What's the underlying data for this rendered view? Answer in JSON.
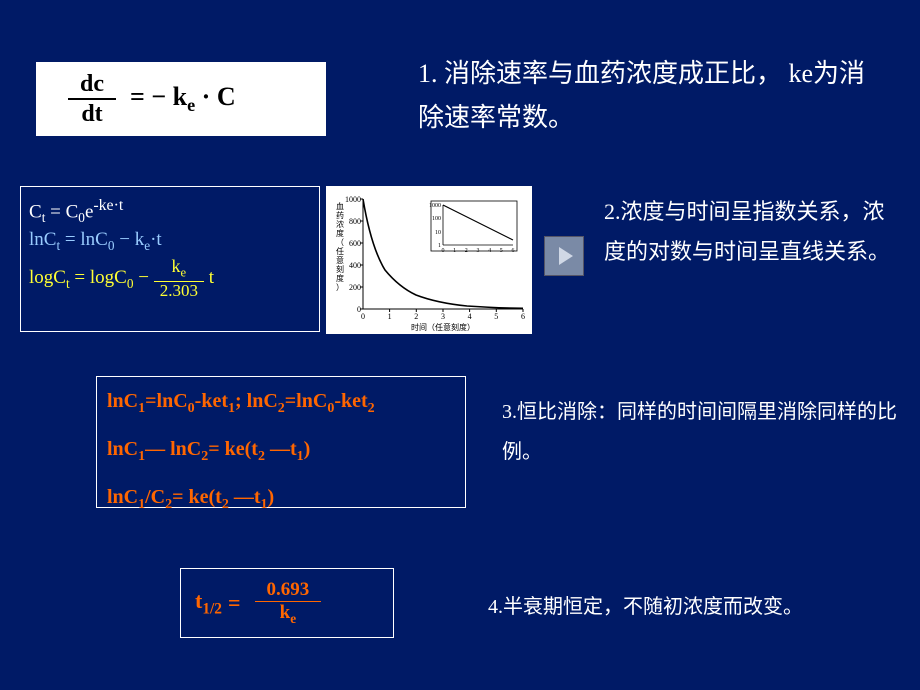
{
  "formula1": {
    "frac_num": "dc",
    "frac_den": "dt",
    "rhs": "= − k<sub>e</sub> · C"
  },
  "text1": "1. 消除速率与血药浓度成正比，  ke为消除速率常数。",
  "formula2": {
    "line1": "C<sub>t</sub>  =  C<sub>0</sub>e<sup>-ke·t</sup>",
    "line2": "lnC<sub>t</sub>  =  lnC<sub>0</sub> − k<sub>e</sub>·t",
    "line3_lhs": "logC<sub>t</sub> = logC<sub>0</sub> − ",
    "line3_frac_num": "k<sub>e</sub>",
    "line3_frac_den": "2.303",
    "line3_rhs": "  t"
  },
  "chart": {
    "type": "line",
    "y_label": "血药浓度（任意刻度）",
    "x_label": "时间（任意刻度）",
    "x_ticks": [
      0,
      1,
      2,
      3,
      4,
      5,
      6
    ],
    "y_ticks": [
      0,
      200,
      400,
      600,
      800,
      1000
    ],
    "series_main": [
      [
        0,
        1000
      ],
      [
        0.5,
        560
      ],
      [
        1,
        350
      ],
      [
        1.5,
        220
      ],
      [
        2,
        140
      ],
      [
        2.5,
        90
      ],
      [
        3,
        60
      ],
      [
        3.5,
        40
      ],
      [
        4,
        28
      ],
      [
        4.5,
        20
      ],
      [
        5,
        15
      ],
      [
        5.5,
        11
      ],
      [
        6,
        8
      ]
    ],
    "inset": {
      "x_ticks": [
        0,
        1,
        2,
        3,
        4,
        5,
        6
      ],
      "y_ticks_log": [
        1,
        10,
        100,
        1000
      ],
      "series": [
        [
          0,
          1000
        ],
        [
          6,
          8
        ]
      ]
    },
    "background_color": "#ffffff",
    "line_color": "#000000",
    "axis_color": "#000000",
    "font_size": 8
  },
  "text2": "2.浓度与时间呈指数关系，浓度的对数与时间呈直线关系。",
  "formula3": {
    "line1": "lnC<sub>1</sub>=lnC<sub>0</sub>-ket<sub>1</sub>; lnC<sub>2</sub>=lnC<sub>0</sub>-ket<sub>2</sub>",
    "line2": "lnC<sub>1</sub>— lnC<sub>2</sub>= ke(t<sub>2</sub> —t<sub>1</sub>)",
    "line3": "lnC<sub>1</sub>/C<sub>2</sub>= ke(t<sub>2</sub> —t<sub>1</sub>)"
  },
  "text3": "3.恒比消除：同样的时间间隔里消除同样的比例。",
  "formula4": {
    "lhs": "t<sub>1/2</sub>",
    "eq": "=",
    "frac_num": "0.693",
    "frac_den": "k<sub>e</sub>"
  },
  "text4": "4.半衰期恒定，不随初浓度而改变。",
  "colors": {
    "background": "#001a66",
    "text_white": "#ffffff",
    "text_orange": "#ff6600",
    "text_yellow": "#ffff33",
    "text_blue": "#99ccff"
  }
}
